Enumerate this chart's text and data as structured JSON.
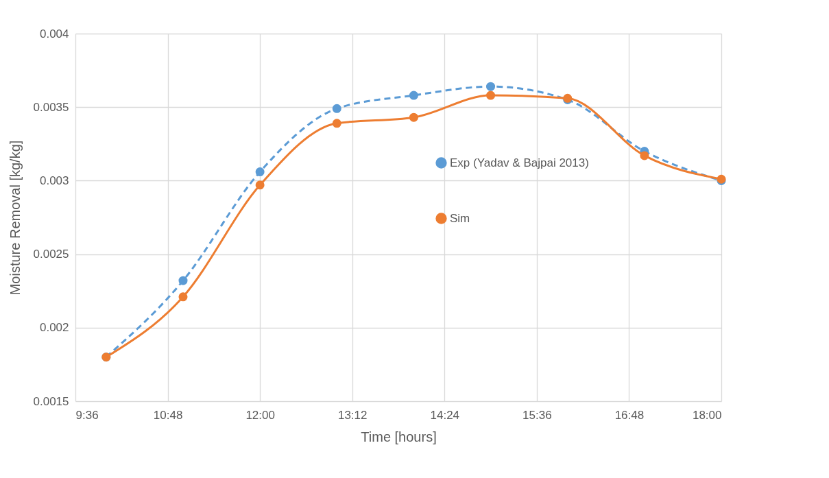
{
  "chart_data": {
    "type": "line",
    "xlabel": "Time [hours]",
    "ylabel": "Moisture Removal [kg/kg]",
    "x": [
      10,
      11,
      12,
      13,
      14,
      15,
      16,
      17,
      18
    ],
    "series": [
      {
        "name": "Exp (Yadav & Bajpai 2013)",
        "color": "#5b9bd5",
        "line_style": "dashed",
        "values": [
          0.0018,
          0.00232,
          0.00306,
          0.00349,
          0.00358,
          0.00364,
          0.00355,
          0.0032,
          0.003
        ]
      },
      {
        "name": "Sim",
        "color": "#ed7d31",
        "line_style": "solid",
        "values": [
          0.0018,
          0.00221,
          0.00297,
          0.00339,
          0.00343,
          0.00358,
          0.00356,
          0.00317,
          0.00301
        ]
      }
    ],
    "xlim": [
      9.6,
      18
    ],
    "xticks": [
      {
        "value": 9.6,
        "label": "9:36"
      },
      {
        "value": 10.8,
        "label": "10:48"
      },
      {
        "value": 12,
        "label": "12:00"
      },
      {
        "value": 13.2,
        "label": "13:12"
      },
      {
        "value": 14.4,
        "label": "14:24"
      },
      {
        "value": 15.6,
        "label": "15:36"
      },
      {
        "value": 16.8,
        "label": "16:48"
      },
      {
        "value": 18,
        "label": "18:00"
      }
    ],
    "ylim": [
      0.0015,
      0.004
    ],
    "yticks": [
      0.0015,
      0.002,
      0.0025,
      0.003,
      0.0035,
      0.004
    ],
    "grid": true,
    "legend": "right",
    "marker": "circle"
  }
}
